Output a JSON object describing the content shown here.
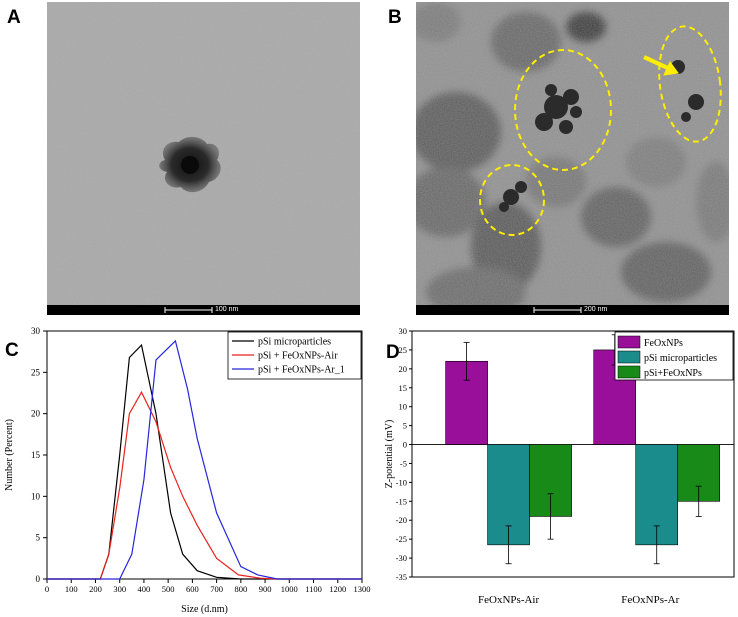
{
  "panels": {
    "a": {
      "letter": "A",
      "scale_label": "100 nm"
    },
    "b": {
      "letter": "B",
      "scale_label": "200 nm"
    },
    "c": {
      "letter": "C"
    },
    "d": {
      "letter": "D"
    }
  },
  "chart_data": [
    {
      "type": "line",
      "xlabel": "Size (d.nm)",
      "ylabel": "Number (Percent)",
      "xlim": [
        0,
        1300
      ],
      "ylim": [
        0,
        30
      ],
      "xticks": [
        0,
        100,
        200,
        300,
        400,
        500,
        600,
        700,
        800,
        900,
        1000,
        1100,
        1200,
        1300
      ],
      "yticks": [
        0,
        5,
        10,
        15,
        20,
        25,
        30
      ],
      "legend_position": "top-right",
      "series": [
        {
          "name": "pSi microparticles",
          "color": "#000000",
          "x": [
            0,
            220,
            255,
            300,
            340,
            390,
            450,
            510,
            560,
            620,
            700,
            800,
            1300
          ],
          "y": [
            0,
            0,
            3,
            15,
            26.8,
            28.3,
            20,
            8,
            3,
            1,
            0.2,
            0,
            0
          ]
        },
        {
          "name": "pSi + FeOxNPs-Air",
          "color": "#e8231f",
          "x": [
            0,
            220,
            255,
            300,
            340,
            390,
            450,
            510,
            560,
            620,
            700,
            790,
            880,
            950,
            1300
          ],
          "y": [
            0,
            0,
            3,
            11,
            20,
            22.6,
            19,
            13.5,
            10,
            6.5,
            2.5,
            0.5,
            0.1,
            0,
            0
          ]
        },
        {
          "name": "pSi + FeOxNPs-Ar_1",
          "color": "#2626d9",
          "x": [
            0,
            300,
            350,
            400,
            450,
            530,
            580,
            620,
            700,
            800,
            870,
            950,
            1300
          ],
          "y": [
            0,
            0,
            3,
            12,
            26.5,
            28.8,
            23,
            17,
            8,
            1.5,
            0.5,
            0,
            0
          ]
        }
      ]
    },
    {
      "type": "bar",
      "ylabel": "Z-potential (mV)",
      "ylim": [
        -35,
        30
      ],
      "yticks": [
        -35,
        -30,
        -25,
        -20,
        -15,
        -10,
        -5,
        0,
        5,
        10,
        15,
        20,
        25,
        30
      ],
      "categories": [
        "FeOxNPs-Air",
        "FeOxNPs-Ar"
      ],
      "legend_position": "top-right",
      "series": [
        {
          "name": "FeOxNPs",
          "color": "#990f99",
          "values": [
            22,
            25
          ],
          "errors": [
            5,
            4
          ]
        },
        {
          "name": "pSi microparticles",
          "color": "#1a8c8c",
          "values": [
            -26.5,
            -26.5
          ],
          "errors": [
            5,
            5
          ]
        },
        {
          "name": "pSi+FeOxNPs",
          "color": "#178a17",
          "values": [
            -19,
            -15
          ],
          "errors": [
            6,
            4
          ]
        }
      ]
    }
  ]
}
